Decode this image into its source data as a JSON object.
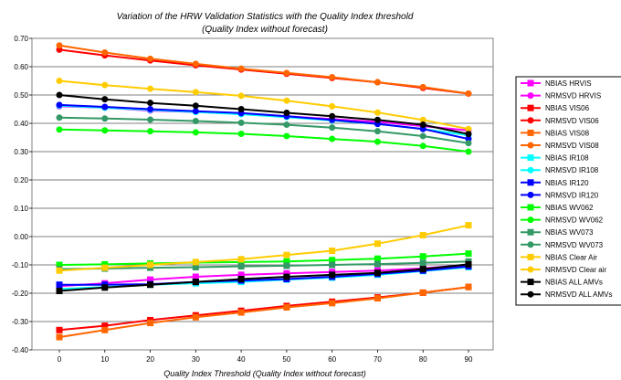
{
  "chart_data": {
    "type": "line",
    "title": "Variation of the HRW Validation Statistics with the Quality Index threshold",
    "subtitle": "(Quality Index without forecast)",
    "xlabel": "Quality Index Threshold (Quality Index without forecast)",
    "ylabel": "",
    "x": [
      0,
      10,
      20,
      30,
      40,
      50,
      60,
      70,
      80,
      90
    ],
    "ylim": [
      -0.4,
      0.7
    ],
    "yticks": [
      -0.4,
      -0.3,
      -0.2,
      -0.1,
      0.0,
      0.1,
      0.2,
      0.3,
      0.4,
      0.5,
      0.6,
      0.7
    ],
    "ytick_labels": [
      "-0.40",
      "-0.30",
      "-0.20",
      "-0.10",
      "0.00",
      "0.10",
      "0.20",
      "0.30",
      "0.40",
      "0.50",
      "0.60",
      "0.70"
    ],
    "xtick_labels": [
      "0",
      "10",
      "20",
      "30",
      "40",
      "50",
      "60",
      "70",
      "80",
      "90"
    ],
    "grid": "horizontal",
    "legend_position": "right",
    "series": [
      {
        "name": "NBIAS HRVIS",
        "color": "#ff00ff",
        "marker": "square",
        "values": [
          -0.175,
          -0.165,
          -0.152,
          -0.142,
          -0.135,
          -0.13,
          -0.125,
          -0.12,
          -0.112,
          -0.1
        ]
      },
      {
        "name": "NRMSVD HRVIS",
        "color": "#ff00ff",
        "marker": "circle",
        "values": [
          0.46,
          0.455,
          0.445,
          0.44,
          0.435,
          0.425,
          0.415,
          0.405,
          0.39,
          0.375
        ]
      },
      {
        "name": "NBIAS VIS06",
        "color": "#ff0000",
        "marker": "square",
        "values": [
          -0.33,
          -0.315,
          -0.295,
          -0.278,
          -0.262,
          -0.245,
          -0.23,
          -0.215,
          -0.198,
          -0.178
        ]
      },
      {
        "name": "NRMSVD VIS06",
        "color": "#ff0000",
        "marker": "circle",
        "values": [
          0.66,
          0.64,
          0.622,
          0.605,
          0.59,
          0.575,
          0.56,
          0.545,
          0.525,
          0.505
        ]
      },
      {
        "name": "NBIAS VIS08",
        "color": "#ff6600",
        "marker": "square",
        "values": [
          -0.355,
          -0.33,
          -0.305,
          -0.285,
          -0.268,
          -0.25,
          -0.235,
          -0.218,
          -0.198,
          -0.178
        ]
      },
      {
        "name": "NRMSVD VIS08",
        "color": "#ff6600",
        "marker": "circle",
        "values": [
          0.675,
          0.65,
          0.628,
          0.61,
          0.593,
          0.578,
          0.563,
          0.545,
          0.528,
          0.505
        ]
      },
      {
        "name": "NBIAS IR108",
        "color": "#00ffff",
        "marker": "square",
        "values": [
          -0.185,
          -0.178,
          -0.17,
          -0.165,
          -0.16,
          -0.152,
          -0.145,
          -0.135,
          -0.122,
          -0.108
        ]
      },
      {
        "name": "NRMSVD IR108",
        "color": "#00ffff",
        "marker": "circle",
        "values": [
          0.462,
          0.455,
          0.447,
          0.44,
          0.432,
          0.422,
          0.41,
          0.398,
          0.38,
          0.358
        ]
      },
      {
        "name": "NBIAS IR120",
        "color": "#0000ff",
        "marker": "square",
        "values": [
          -0.17,
          -0.17,
          -0.168,
          -0.16,
          -0.155,
          -0.15,
          -0.142,
          -0.132,
          -0.12,
          -0.105
        ]
      },
      {
        "name": "NRMSVD IR120",
        "color": "#0000ff",
        "marker": "circle",
        "values": [
          0.465,
          0.458,
          0.45,
          0.443,
          0.436,
          0.425,
          0.412,
          0.398,
          0.38,
          0.345
        ]
      },
      {
        "name": "NBIAS WV062",
        "color": "#00ff00",
        "marker": "square",
        "values": [
          -0.1,
          -0.098,
          -0.095,
          -0.092,
          -0.09,
          -0.088,
          -0.083,
          -0.078,
          -0.07,
          -0.06
        ]
      },
      {
        "name": "NRMSVD WV062",
        "color": "#00ff00",
        "marker": "circle",
        "values": [
          0.378,
          0.375,
          0.372,
          0.368,
          0.363,
          0.355,
          0.345,
          0.335,
          0.32,
          0.3
        ]
      },
      {
        "name": "NBIAS WV073",
        "color": "#339966",
        "marker": "square",
        "values": [
          -0.115,
          -0.113,
          -0.11,
          -0.108,
          -0.105,
          -0.103,
          -0.1,
          -0.097,
          -0.093,
          -0.088
        ]
      },
      {
        "name": "NRMSVD WV073",
        "color": "#339966",
        "marker": "circle",
        "values": [
          0.42,
          0.417,
          0.413,
          0.408,
          0.402,
          0.395,
          0.385,
          0.372,
          0.355,
          0.33
        ]
      },
      {
        "name": "NBIAS Clear Air",
        "color": "#ffcc00",
        "marker": "square",
        "values": [
          -0.12,
          -0.11,
          -0.1,
          -0.09,
          -0.08,
          -0.065,
          -0.05,
          -0.025,
          0.005,
          0.04
        ]
      },
      {
        "name": "NRMSVD Clear air",
        "color": "#ffcc00",
        "marker": "circle",
        "values": [
          0.55,
          0.535,
          0.522,
          0.51,
          0.497,
          0.48,
          0.46,
          0.438,
          0.412,
          0.38
        ]
      },
      {
        "name": "NBIAS ALL AMVs",
        "color": "#000000",
        "marker": "square",
        "values": [
          -0.192,
          -0.18,
          -0.17,
          -0.16,
          -0.15,
          -0.142,
          -0.135,
          -0.128,
          -0.115,
          -0.098
        ]
      },
      {
        "name": "NRMSVD ALL AMVs",
        "color": "#000000",
        "marker": "circle",
        "values": [
          0.5,
          0.485,
          0.472,
          0.462,
          0.45,
          0.437,
          0.425,
          0.412,
          0.395,
          0.362
        ]
      }
    ]
  }
}
